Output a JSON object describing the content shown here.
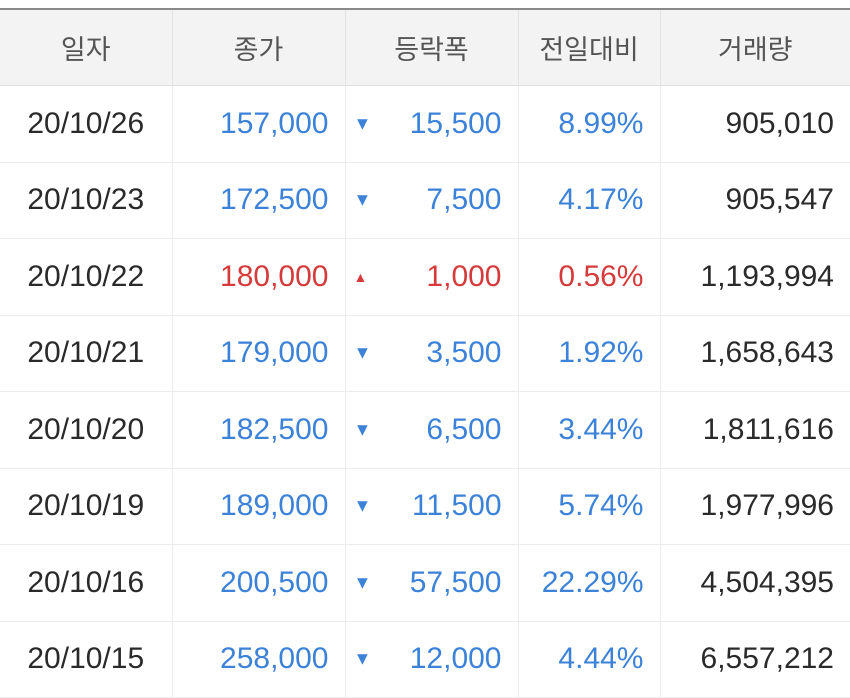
{
  "colors": {
    "up": "#d63a3a",
    "down": "#3b82d8"
  },
  "headers": [
    "일자",
    "종가",
    "등락폭",
    "전일대비",
    "거래량"
  ],
  "rows": [
    {
      "date": "20/10/26",
      "close": "157,000",
      "dir": "down",
      "change": "15,500",
      "pct": "8.99%",
      "volume": "905,010"
    },
    {
      "date": "20/10/23",
      "close": "172,500",
      "dir": "down",
      "change": "7,500",
      "pct": "4.17%",
      "volume": "905,547"
    },
    {
      "date": "20/10/22",
      "close": "180,000",
      "dir": "up",
      "change": "1,000",
      "pct": "0.56%",
      "volume": "1,193,994"
    },
    {
      "date": "20/10/21",
      "close": "179,000",
      "dir": "down",
      "change": "3,500",
      "pct": "1.92%",
      "volume": "1,658,643"
    },
    {
      "date": "20/10/20",
      "close": "182,500",
      "dir": "down",
      "change": "6,500",
      "pct": "3.44%",
      "volume": "1,811,616"
    },
    {
      "date": "20/10/19",
      "close": "189,000",
      "dir": "down",
      "change": "11,500",
      "pct": "5.74%",
      "volume": "1,977,996"
    },
    {
      "date": "20/10/16",
      "close": "200,500",
      "dir": "down",
      "change": "57,500",
      "pct": "22.29%",
      "volume": "4,504,395"
    },
    {
      "date": "20/10/15",
      "close": "258,000",
      "dir": "down",
      "change": "12,000",
      "pct": "4.44%",
      "volume": "6,557,212"
    }
  ]
}
